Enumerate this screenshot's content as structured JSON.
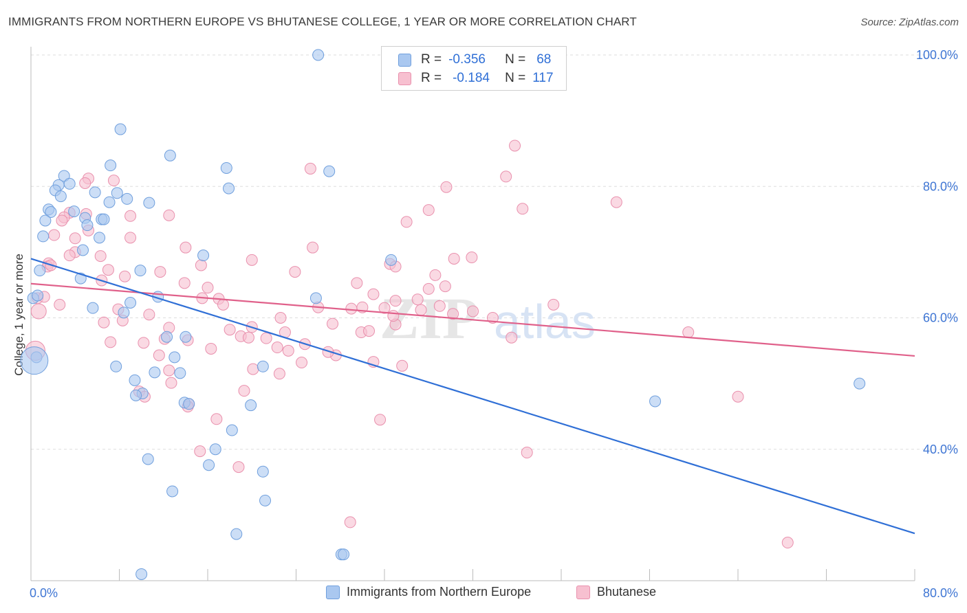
{
  "title": "IMMIGRANTS FROM NORTHERN EUROPE VS BHUTANESE COLLEGE, 1 YEAR OR MORE CORRELATION CHART",
  "source": "Source: ZipAtlas.com",
  "watermark": {
    "zip": "ZIP",
    "atlas": "atlas"
  },
  "legend": {
    "r_label": "R =",
    "n_label": "N =",
    "rows": [
      {
        "series": "Immigrants from Northern Europe",
        "r": "-0.356",
        "n": "68",
        "color": "#aac8f0"
      },
      {
        "series": "Bhutanese",
        "r": "-0.184",
        "n": "117",
        "color": "#f7c0d0"
      }
    ]
  },
  "colors": {
    "blue_fill": "#aac8f0",
    "blue_stroke": "#6f9fdd",
    "blue_line": "#2f6fd6",
    "pink_fill": "#f7c0d0",
    "pink_stroke": "#e990ad",
    "pink_line": "#e0608a",
    "tick_text": "#3f76d4",
    "grid": "#dddddd"
  },
  "chart_data": {
    "type": "scatter",
    "title": "IMMIGRANTS FROM NORTHERN EUROPE VS BHUTANESE COLLEGE, 1 YEAR OR MORE CORRELATION CHART",
    "xlabel": "",
    "ylabel": "College, 1 year or more",
    "xlim": [
      0,
      80
    ],
    "ylim": [
      20,
      100
    ],
    "x_tick_labels": [
      "0.0%",
      "80.0%"
    ],
    "y_ticks": [
      40,
      60,
      80,
      100
    ],
    "y_tick_labels": [
      "40.0%",
      "60.0%",
      "80.0%",
      "100.0%"
    ],
    "grid": true,
    "legend_position": "top-center",
    "series": [
      {
        "name": "Immigrants from Northern Europe",
        "color": "#aac8f0",
        "trend": {
          "x": [
            0,
            80
          ],
          "y": [
            69.0,
            27.2
          ]
        },
        "points": [
          [
            26,
            100.0
          ],
          [
            8.1,
            88.7
          ],
          [
            12.6,
            84.7
          ],
          [
            7.2,
            83.2
          ],
          [
            17.7,
            82.8
          ],
          [
            27.0,
            82.3
          ],
          [
            3.0,
            81.6
          ],
          [
            3.5,
            80.4
          ],
          [
            2.5,
            80.2
          ],
          [
            17.9,
            79.7
          ],
          [
            2.2,
            79.4
          ],
          [
            5.8,
            79.1
          ],
          [
            7.8,
            79.0
          ],
          [
            2.7,
            78.5
          ],
          [
            8.7,
            78.1
          ],
          [
            7.1,
            77.6
          ],
          [
            10.7,
            77.5
          ],
          [
            1.6,
            76.5
          ],
          [
            1.8,
            76.1
          ],
          [
            3.9,
            76.2
          ],
          [
            4.9,
            75.2
          ],
          [
            6.4,
            75.0
          ],
          [
            6.6,
            75.0
          ],
          [
            1.3,
            74.8
          ],
          [
            5.1,
            74.1
          ],
          [
            1.1,
            72.4
          ],
          [
            6.2,
            72.2
          ],
          [
            4.7,
            70.3
          ],
          [
            15.6,
            69.5
          ],
          [
            32.6,
            68.8
          ],
          [
            0.8,
            67.2
          ],
          [
            9.9,
            67.2
          ],
          [
            4.5,
            66.0
          ],
          [
            11.5,
            63.2
          ],
          [
            25.8,
            63.0
          ],
          [
            9.0,
            62.3
          ],
          [
            5.6,
            61.5
          ],
          [
            8.4,
            60.8
          ],
          [
            12.3,
            57.1
          ],
          [
            14.0,
            57.1
          ],
          [
            13.0,
            54.0
          ],
          [
            7.7,
            52.6
          ],
          [
            21.0,
            52.6
          ],
          [
            11.2,
            51.7
          ],
          [
            13.5,
            51.6
          ],
          [
            9.4,
            50.5
          ],
          [
            10.1,
            48.5
          ],
          [
            9.5,
            48.2
          ],
          [
            56.5,
            47.3
          ],
          [
            75.0,
            50.0
          ],
          [
            13.9,
            47.1
          ],
          [
            14.3,
            46.9
          ],
          [
            19.9,
            46.7
          ],
          [
            18.2,
            42.9
          ],
          [
            16.7,
            40.0
          ],
          [
            10.6,
            38.5
          ],
          [
            16.1,
            37.6
          ],
          [
            21.0,
            36.6
          ],
          [
            12.8,
            33.6
          ],
          [
            21.2,
            32.2
          ],
          [
            18.6,
            27.1
          ],
          [
            28.1,
            24.0
          ],
          [
            28.3,
            24.0
          ],
          [
            10.0,
            21.0
          ],
          [
            0.2,
            63.0
          ],
          [
            0.5,
            54.0
          ],
          [
            0.3,
            53.5
          ],
          [
            0.6,
            63.4
          ]
        ],
        "sizes_note": "point at [0.3,53.5] is drawn large"
      },
      {
        "name": "Bhutanese",
        "color": "#f7c0d0",
        "trend": {
          "x": [
            0,
            80
          ],
          "y": [
            65.2,
            54.2
          ]
        },
        "points": [
          [
            43.8,
            86.2
          ],
          [
            25.3,
            82.7
          ],
          [
            43.0,
            81.5
          ],
          [
            5.2,
            81.2
          ],
          [
            7.5,
            80.9
          ],
          [
            4.9,
            80.5
          ],
          [
            37.6,
            79.9
          ],
          [
            53.0,
            77.6
          ],
          [
            44.5,
            76.6
          ],
          [
            36.0,
            76.4
          ],
          [
            3.5,
            76.0
          ],
          [
            5.0,
            75.8
          ],
          [
            9.0,
            75.5
          ],
          [
            12.5,
            75.6
          ],
          [
            3.0,
            75.3
          ],
          [
            34.0,
            74.6
          ],
          [
            2.8,
            74.8
          ],
          [
            5.2,
            73.3
          ],
          [
            2.1,
            72.6
          ],
          [
            9.0,
            72.2
          ],
          [
            4.0,
            72.1
          ],
          [
            14.0,
            70.7
          ],
          [
            25.5,
            70.7
          ],
          [
            20.0,
            68.8
          ],
          [
            6.3,
            69.4
          ],
          [
            39.9,
            69.2
          ],
          [
            38.3,
            69.0
          ],
          [
            32.5,
            68.2
          ],
          [
            33.0,
            67.8
          ],
          [
            15.4,
            68.0
          ],
          [
            1.6,
            68.3
          ],
          [
            1.5,
            67.8
          ],
          [
            23.9,
            67.0
          ],
          [
            11.7,
            67.0
          ],
          [
            7.0,
            67.3
          ],
          [
            8.5,
            66.3
          ],
          [
            36.6,
            66.5
          ],
          [
            6.4,
            65.7
          ],
          [
            29.5,
            65.3
          ],
          [
            13.9,
            65.3
          ],
          [
            37.5,
            64.8
          ],
          [
            16.0,
            64.6
          ],
          [
            36.0,
            64.4
          ],
          [
            31.0,
            63.6
          ],
          [
            35.0,
            62.8
          ],
          [
            17.0,
            62.9
          ],
          [
            15.5,
            63.0
          ],
          [
            33.0,
            62.6
          ],
          [
            32.0,
            61.5
          ],
          [
            30.0,
            61.6
          ],
          [
            26.0,
            61.6
          ],
          [
            29.0,
            61.4
          ],
          [
            47.3,
            62.0
          ],
          [
            17.4,
            62.0
          ],
          [
            38.2,
            60.6
          ],
          [
            10.7,
            60.5
          ],
          [
            7.9,
            61.3
          ],
          [
            22.6,
            60.0
          ],
          [
            8.3,
            59.6
          ],
          [
            6.6,
            59.3
          ],
          [
            27.3,
            59.1
          ],
          [
            33.0,
            59.0
          ],
          [
            20.0,
            58.6
          ],
          [
            12.5,
            58.5
          ],
          [
            18.0,
            58.2
          ],
          [
            23.0,
            57.8
          ],
          [
            29.9,
            57.8
          ],
          [
            19.0,
            57.2
          ],
          [
            19.7,
            57.0
          ],
          [
            21.3,
            56.9
          ],
          [
            12.1,
            56.8
          ],
          [
            14.2,
            56.6
          ],
          [
            43.5,
            57.0
          ],
          [
            59.5,
            57.8
          ],
          [
            7.2,
            56.3
          ],
          [
            10.2,
            56.2
          ],
          [
            16.3,
            55.3
          ],
          [
            22.3,
            55.5
          ],
          [
            23.3,
            55.0
          ],
          [
            11.6,
            54.3
          ],
          [
            27.6,
            54.3
          ],
          [
            20.1,
            52.2
          ],
          [
            31.0,
            53.3
          ],
          [
            12.5,
            52.0
          ],
          [
            24.5,
            53.2
          ],
          [
            33.6,
            52.7
          ],
          [
            22.5,
            51.5
          ],
          [
            12.7,
            50.1
          ],
          [
            19.3,
            48.9
          ],
          [
            9.8,
            48.8
          ],
          [
            14.3,
            46.9
          ],
          [
            14.2,
            46.5
          ],
          [
            16.8,
            44.6
          ],
          [
            31.6,
            44.5
          ],
          [
            15.3,
            39.7
          ],
          [
            18.8,
            37.3
          ],
          [
            44.9,
            39.5
          ],
          [
            28.9,
            28.9
          ],
          [
            68.5,
            25.8
          ],
          [
            64.0,
            48.0
          ],
          [
            0.7,
            61.0
          ],
          [
            0.6,
            63.0
          ],
          [
            1.2,
            63.2
          ],
          [
            0.4,
            55.0
          ],
          [
            1.8,
            68.0
          ],
          [
            2.6,
            62.0
          ],
          [
            4.0,
            70.0
          ],
          [
            3.5,
            69.5
          ],
          [
            10.3,
            48.0
          ],
          [
            24.8,
            56.0
          ],
          [
            26.9,
            54.8
          ],
          [
            30.6,
            58.0
          ],
          [
            32.8,
            60.3
          ],
          [
            35.3,
            61.2
          ],
          [
            37.0,
            61.8
          ],
          [
            40.0,
            61.0
          ],
          [
            41.8,
            60.0
          ]
        ]
      }
    ]
  },
  "bottom_legend": [
    {
      "label": "Immigrants from Northern Europe"
    },
    {
      "label": "Bhutanese"
    }
  ]
}
